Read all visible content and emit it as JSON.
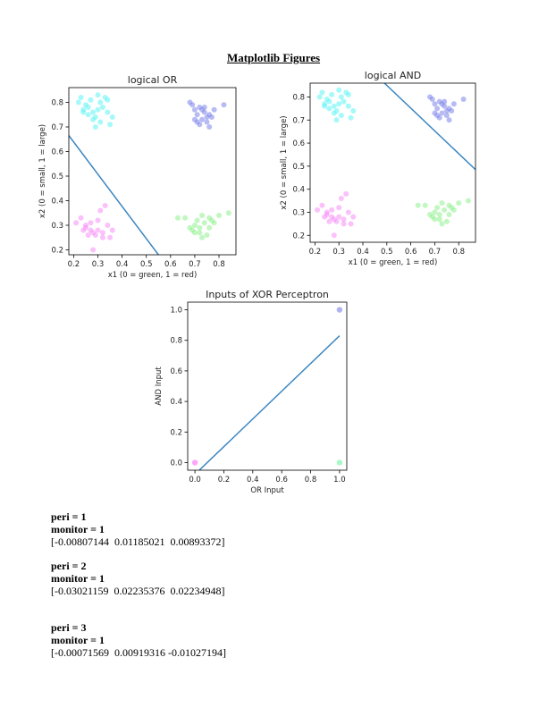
{
  "page_title": "Matplotlib Figures",
  "chart_data": [
    {
      "type": "scatter",
      "title": "logical OR",
      "xlabel": "x1 (0 = green, 1 = red)",
      "ylabel": "x2 (0 = small, 1 = large)",
      "xlim": [
        0.18,
        0.87
      ],
      "ylim": [
        0.18,
        0.86
      ],
      "xticks": [
        0.2,
        0.3,
        0.4,
        0.5,
        0.6,
        0.7,
        0.8
      ],
      "yticks": [
        0.2,
        0.3,
        0.4,
        0.5,
        0.6,
        0.7,
        0.8
      ],
      "grid": false,
      "series": [
        {
          "color": "#5ef4f4",
          "x": [
            0.22,
            0.23,
            0.24,
            0.25,
            0.26,
            0.27,
            0.28,
            0.29,
            0.29,
            0.3,
            0.3,
            0.31,
            0.32,
            0.33,
            0.34,
            0.35,
            0.36,
            0.28,
            0.31,
            0.26,
            0.34,
            0.24
          ],
          "y": [
            0.8,
            0.82,
            0.77,
            0.79,
            0.75,
            0.81,
            0.73,
            0.74,
            0.7,
            0.83,
            0.77,
            0.8,
            0.78,
            0.82,
            0.76,
            0.71,
            0.74,
            0.76,
            0.72,
            0.78,
            0.81,
            0.76
          ]
        },
        {
          "color": "#7b83ea",
          "x": [
            0.68,
            0.69,
            0.7,
            0.71,
            0.72,
            0.73,
            0.74,
            0.75,
            0.76,
            0.77,
            0.72,
            0.74,
            0.7,
            0.76,
            0.73,
            0.71,
            0.75,
            0.78,
            0.82
          ],
          "y": [
            0.8,
            0.79,
            0.77,
            0.75,
            0.78,
            0.73,
            0.76,
            0.72,
            0.75,
            0.74,
            0.71,
            0.78,
            0.73,
            0.7,
            0.77,
            0.72,
            0.74,
            0.77,
            0.79
          ]
        },
        {
          "color": "#f58ef5",
          "x": [
            0.21,
            0.23,
            0.24,
            0.25,
            0.26,
            0.27,
            0.28,
            0.28,
            0.29,
            0.3,
            0.31,
            0.32,
            0.33,
            0.34,
            0.36,
            0.27,
            0.3,
            0.35,
            0.25,
            0.32
          ],
          "y": [
            0.31,
            0.33,
            0.28,
            0.29,
            0.26,
            0.28,
            0.27,
            0.2,
            0.26,
            0.32,
            0.36,
            0.27,
            0.38,
            0.3,
            0.28,
            0.31,
            0.28,
            0.25,
            0.3,
            0.25
          ]
        },
        {
          "color": "#8ef08e",
          "x": [
            0.63,
            0.66,
            0.68,
            0.69,
            0.7,
            0.71,
            0.72,
            0.73,
            0.74,
            0.75,
            0.76,
            0.77,
            0.78,
            0.8,
            0.84,
            0.7,
            0.73,
            0.72,
            0.76
          ],
          "y": [
            0.33,
            0.33,
            0.29,
            0.28,
            0.3,
            0.32,
            0.27,
            0.34,
            0.31,
            0.26,
            0.29,
            0.32,
            0.31,
            0.34,
            0.35,
            0.27,
            0.25,
            0.29,
            0.33
          ]
        }
      ],
      "line": {
        "color": "#3b86c0",
        "x": [
          0.18,
          0.55
        ],
        "y": [
          0.665,
          0.18
        ]
      }
    },
    {
      "type": "scatter",
      "title": "logical AND",
      "xlabel": "x1 (0 = green, 1 = red)",
      "ylabel": "x2 (0 = small, 1 = large)",
      "xlim": [
        0.18,
        0.87
      ],
      "ylim": [
        0.17,
        0.86
      ],
      "xticks": [
        0.2,
        0.3,
        0.4,
        0.5,
        0.6,
        0.7,
        0.8
      ],
      "yticks": [
        0.2,
        0.3,
        0.4,
        0.5,
        0.6,
        0.7,
        0.8
      ],
      "grid": false,
      "series": [
        {
          "color": "#5ef4f4",
          "x": [
            0.22,
            0.23,
            0.24,
            0.25,
            0.26,
            0.27,
            0.28,
            0.29,
            0.29,
            0.3,
            0.3,
            0.31,
            0.32,
            0.33,
            0.34,
            0.35,
            0.36,
            0.28,
            0.31,
            0.26,
            0.34,
            0.24
          ],
          "y": [
            0.8,
            0.82,
            0.77,
            0.79,
            0.75,
            0.81,
            0.73,
            0.74,
            0.7,
            0.83,
            0.77,
            0.8,
            0.78,
            0.82,
            0.76,
            0.71,
            0.74,
            0.76,
            0.72,
            0.78,
            0.81,
            0.76
          ]
        },
        {
          "color": "#7b83ea",
          "x": [
            0.68,
            0.69,
            0.7,
            0.71,
            0.72,
            0.73,
            0.74,
            0.75,
            0.76,
            0.77,
            0.72,
            0.74,
            0.7,
            0.76,
            0.73,
            0.71,
            0.75,
            0.78,
            0.82
          ],
          "y": [
            0.8,
            0.79,
            0.77,
            0.75,
            0.78,
            0.73,
            0.76,
            0.72,
            0.75,
            0.74,
            0.71,
            0.78,
            0.73,
            0.7,
            0.77,
            0.72,
            0.74,
            0.77,
            0.79
          ]
        },
        {
          "color": "#f58ef5",
          "x": [
            0.21,
            0.23,
            0.24,
            0.25,
            0.26,
            0.27,
            0.28,
            0.28,
            0.29,
            0.3,
            0.31,
            0.32,
            0.33,
            0.34,
            0.36,
            0.27,
            0.3,
            0.35,
            0.25,
            0.32
          ],
          "y": [
            0.31,
            0.33,
            0.28,
            0.29,
            0.26,
            0.28,
            0.27,
            0.2,
            0.26,
            0.32,
            0.36,
            0.27,
            0.38,
            0.3,
            0.28,
            0.31,
            0.28,
            0.25,
            0.3,
            0.25
          ]
        },
        {
          "color": "#8ef08e",
          "x": [
            0.63,
            0.66,
            0.68,
            0.69,
            0.7,
            0.71,
            0.72,
            0.73,
            0.74,
            0.75,
            0.76,
            0.77,
            0.78,
            0.8,
            0.84,
            0.7,
            0.73,
            0.72,
            0.76
          ],
          "y": [
            0.33,
            0.33,
            0.29,
            0.28,
            0.3,
            0.32,
            0.27,
            0.34,
            0.31,
            0.26,
            0.29,
            0.32,
            0.31,
            0.34,
            0.35,
            0.27,
            0.25,
            0.29,
            0.33
          ]
        }
      ],
      "line": {
        "color": "#3b86c0",
        "x": [
          0.49,
          0.87
        ],
        "y": [
          0.86,
          0.485
        ]
      }
    },
    {
      "type": "scatter",
      "title": "Inputs of XOR Perceptron",
      "xlabel": "OR Input",
      "ylabel": "AND Input",
      "xlim": [
        -0.05,
        1.05
      ],
      "ylim": [
        -0.05,
        1.05
      ],
      "xticks": [
        0.0,
        0.2,
        0.4,
        0.6,
        0.8,
        1.0
      ],
      "yticks": [
        0.0,
        0.2,
        0.4,
        0.6,
        0.8,
        1.0
      ],
      "xtick_labels": [
        "0.0",
        "0.2",
        "0.4",
        "0.6",
        "0.8",
        "1.0"
      ],
      "ytick_labels": [
        "0.0",
        "0.2",
        "0.4",
        "0.6",
        "0.8",
        "1.0"
      ],
      "grid": false,
      "series": [
        {
          "color": "#f55ef5",
          "x": [
            0.0
          ],
          "y": [
            0.0
          ]
        },
        {
          "color": "#5ef49a",
          "x": [
            1.0
          ],
          "y": [
            0.0
          ]
        },
        {
          "color": "#6b73e0",
          "x": [
            1.0
          ],
          "y": [
            1.0
          ]
        }
      ],
      "line": {
        "color": "#3b86c0",
        "x": [
          0.03,
          1.0
        ],
        "y": [
          -0.05,
          0.83
        ]
      }
    }
  ],
  "results": [
    {
      "peri": "peri = 1",
      "monitor": "monitor = 1",
      "weights": "[-0.00807144  0.01185021  0.00893372]"
    },
    {
      "peri": "peri = 2",
      "monitor": "monitor = 1",
      "weights": "[-0.03021159  0.02235376  0.02234948]"
    },
    {
      "peri": "peri = 3",
      "monitor": "monitor = 1",
      "weights": "[-0.00071569  0.00919316 -0.01027194]"
    }
  ]
}
